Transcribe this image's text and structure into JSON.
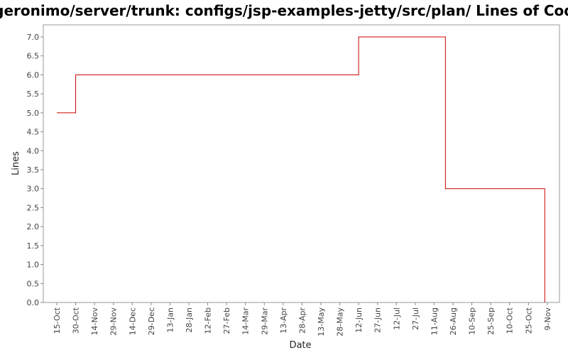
{
  "chart_data": {
    "type": "line",
    "step": true,
    "title": "/geronimo/server/trunk: configs/jsp-examples-jetty/src/plan/ Lines of Code",
    "xlabel": "Date",
    "ylabel": "Lines",
    "ylim": [
      0,
      7.2
    ],
    "yticks": [
      "0.0",
      "0.5",
      "1.0",
      "1.5",
      "2.0",
      "2.5",
      "3.0",
      "3.5",
      "4.0",
      "4.5",
      "5.0",
      "5.5",
      "6.0",
      "6.5",
      "7.0"
    ],
    "xticks": [
      "15-Oct",
      "30-Oct",
      "14-Nov",
      "29-Nov",
      "14-Dec",
      "29-Dec",
      "13-Jan",
      "28-Jan",
      "12-Feb",
      "27-Feb",
      "14-Mar",
      "29-Mar",
      "13-Apr",
      "28-Apr",
      "13-May",
      "28-May",
      "12-Jun",
      "27-Jun",
      "12-Jul",
      "27-Jul",
      "11-Aug",
      "26-Aug",
      "10-Sep",
      "25-Sep",
      "10-Oct",
      "25-Oct",
      "9-Nov"
    ],
    "grid": false,
    "line_color": "#cc0000",
    "series": [
      {
        "points": [
          {
            "x": "15-Oct",
            "y": 5
          },
          {
            "x": "30-Oct",
            "y": 6
          },
          {
            "x": "12-Jun",
            "y": 7
          },
          {
            "x": "20-Aug",
            "y": 3
          },
          {
            "x": "7-Nov",
            "y": 0
          }
        ]
      }
    ]
  }
}
